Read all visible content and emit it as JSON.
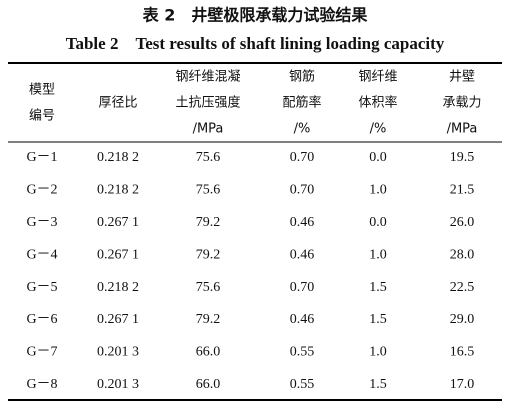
{
  "title": {
    "zh": "表 2　井壁极限承载力试验结果",
    "en": "Table 2　Test results of shaft lining loading capacity"
  },
  "table": {
    "header": [
      [
        "模型",
        "编号"
      ],
      [
        "厚径比"
      ],
      [
        "钢纤维混凝",
        "土抗压强度",
        "/MPa"
      ],
      [
        "钢筋",
        "配筋率",
        "/%"
      ],
      [
        "钢纤维",
        "体积率",
        "/%"
      ],
      [
        "井壁",
        "承载力",
        "/MPa"
      ]
    ],
    "rows": [
      [
        "G－1",
        "0.218 2",
        "75.6",
        "0.70",
        "0.0",
        "19.5"
      ],
      [
        "G－2",
        "0.218 2",
        "75.6",
        "0.70",
        "1.0",
        "21.5"
      ],
      [
        "G－3",
        "0.267 1",
        "79.2",
        "0.46",
        "0.0",
        "26.0"
      ],
      [
        "G－4",
        "0.267 1",
        "79.2",
        "0.46",
        "1.0",
        "28.0"
      ],
      [
        "G－5",
        "0.218 2",
        "75.6",
        "0.70",
        "1.5",
        "22.5"
      ],
      [
        "G－6",
        "0.267 1",
        "79.2",
        "0.46",
        "1.5",
        "29.0"
      ],
      [
        "G－7",
        "0.201 3",
        "66.0",
        "0.55",
        "1.0",
        "16.5"
      ],
      [
        "G－8",
        "0.201 3",
        "66.0",
        "0.55",
        "1.5",
        "17.0"
      ]
    ]
  }
}
